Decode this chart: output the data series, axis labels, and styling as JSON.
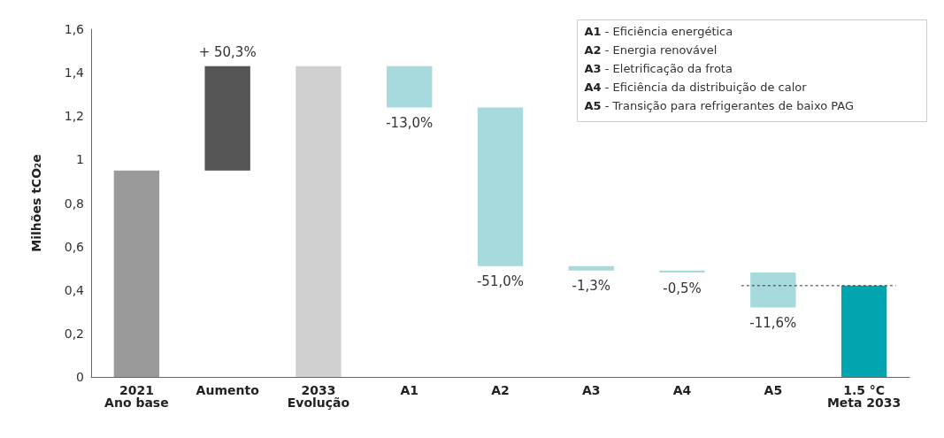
{
  "chart_data": {
    "type": "bar",
    "ylabel": "Milhões tCO₂e",
    "categories": [
      "2021\nAno base",
      "Aumento",
      "2033\nEvolução",
      "A1",
      "A2",
      "A3",
      "A4",
      "A5",
      "1.5 °C\nMeta 2033"
    ],
    "base": [
      0,
      0.95,
      0,
      1.43,
      1.24,
      0.51,
      0.49,
      0.48,
      0
    ],
    "values": [
      0.95,
      0.48,
      1.43,
      -0.19,
      -0.73,
      -0.02,
      -0.01,
      -0.16,
      0.42
    ],
    "colors": [
      "#9a9a9a",
      "#555555",
      "#d0d0d0",
      "#a6dadc",
      "#a6dadc",
      "#a6dadc",
      "#a6dadc",
      "#a6dadc",
      "#00a5b0"
    ],
    "ylim": [
      0,
      1.6
    ],
    "yticks": [
      0,
      {
        "value": 0.2,
        "label": "0,2"
      },
      {
        "value": 0.4,
        "label": "0,4"
      },
      {
        "value": 0.6,
        "label": "0,6"
      },
      {
        "value": 0.8,
        "label": "0,8"
      },
      1,
      {
        "value": 1.2,
        "label": "1,2"
      },
      {
        "value": 1.4,
        "label": "1,4"
      },
      {
        "value": 1.6,
        "label": "1,6"
      }
    ],
    "ref_lines": [
      {
        "axis": "y",
        "value": 0.42,
        "line_style": "dashed",
        "color": "#333333"
      }
    ],
    "annotations": [
      {
        "text": "+ 50,3%",
        "x": "Aumento",
        "y": 1.43
      },
      {
        "text": "-13,0%",
        "x": "A1",
        "y": 1.24
      },
      {
        "text": "-51,0%",
        "x": "A2",
        "y": 0.51
      },
      {
        "text": "-1,3%",
        "x": "A3",
        "y": 0.49
      },
      {
        "text": "-0,5%",
        "x": "A4",
        "y": 0.48
      },
      {
        "text": "-11,6%",
        "x": "A5",
        "y": 0.32
      },
      "A1 - Eficiência energética",
      "A2 - Energia renovável",
      "A3 - Eletrificação da frota",
      "A4 - Eficiência da distribuição de calor",
      "A5 - Transição para refrigerantes de baixo PAG"
    ],
    "grid": false
  }
}
